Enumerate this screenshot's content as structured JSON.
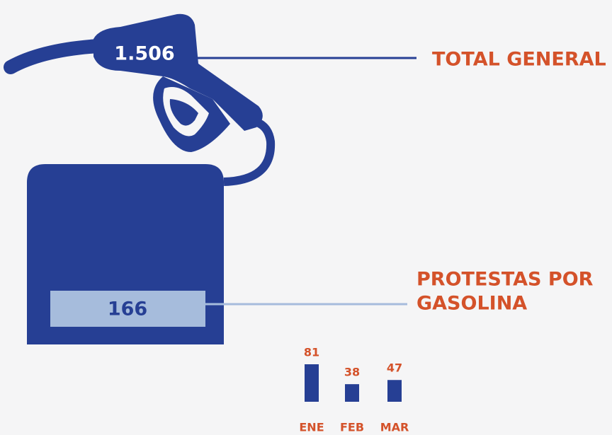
{
  "total": {
    "value": "1.506",
    "label": "TOTAL GENERAL"
  },
  "gasoline": {
    "value": 166,
    "label": [
      "PROTESTAS POR",
      "GASOLINA"
    ]
  },
  "chart_data": {
    "type": "bar",
    "categories": [
      "ENE",
      "FEB",
      "MAR"
    ],
    "values": [
      81,
      38,
      47
    ],
    "color": "#263f94",
    "label_color": "#d4522a"
  }
}
